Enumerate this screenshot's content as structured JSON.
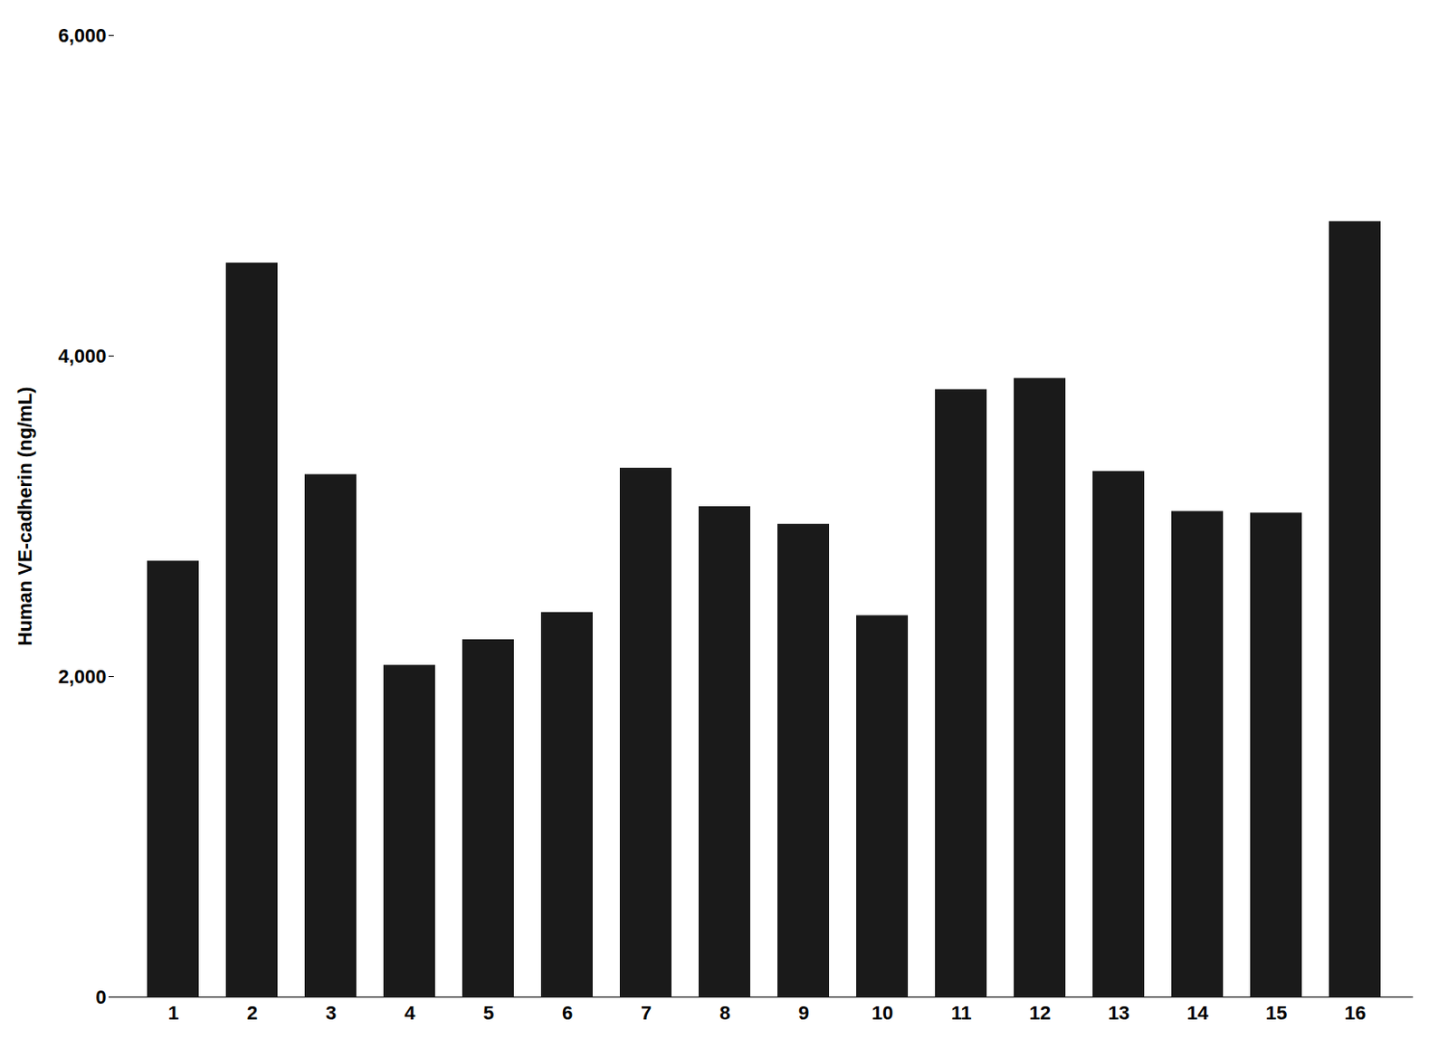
{
  "chart_data": {
    "type": "bar",
    "categories": [
      "1",
      "2",
      "3",
      "4",
      "5",
      "6",
      "7",
      "8",
      "9",
      "10",
      "11",
      "12",
      "13",
      "14",
      "15",
      "16"
    ],
    "values": [
      2720,
      4580,
      3260,
      2070,
      2230,
      2400,
      3300,
      3060,
      2950,
      2380,
      3790,
      3860,
      3280,
      3030,
      3020,
      4839
    ],
    "color": "#1a1a1a",
    "ylabel": "Human VE-cadherin (ng/mL)",
    "ylim": [
      0,
      6000
    ],
    "yticks": [
      0,
      {
        "value": 2000,
        "label": "2,000"
      },
      {
        "value": 4000,
        "label": "4,000"
      },
      {
        "value": 6000,
        "label": "6,000"
      }
    ],
    "grid": false
  }
}
